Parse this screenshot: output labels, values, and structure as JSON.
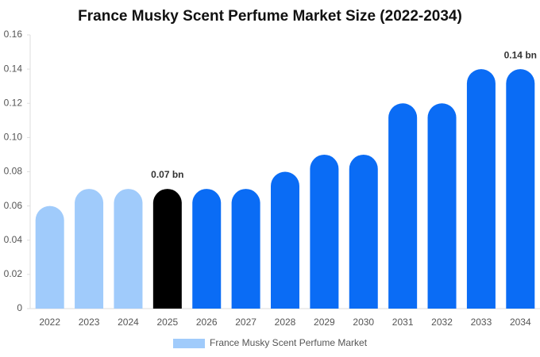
{
  "chart_data": {
    "type": "bar",
    "title": "France Musky Scent Perfume Market Size (2022-2034)",
    "categories": [
      "2022",
      "2023",
      "2024",
      "2025",
      "2026",
      "2027",
      "2028",
      "2029",
      "2030",
      "2031",
      "2032",
      "2033",
      "2034"
    ],
    "series": [
      {
        "name": "France Musky Scent Perfume Market",
        "color": "#a0cbfb",
        "colors": [
          "#a0cbfb",
          "#a0cbfb",
          "#a0cbfb",
          "#000000",
          "#0a6cf5",
          "#0a6cf5",
          "#0a6cf5",
          "#0a6cf5",
          "#0a6cf5",
          "#0a6cf5",
          "#0a6cf5",
          "#0a6cf5",
          "#0a6cf5"
        ],
        "values": [
          0.06,
          0.07,
          0.07,
          0.07,
          0.07,
          0.07,
          0.08,
          0.09,
          0.09,
          0.12,
          0.12,
          0.14,
          0.14
        ],
        "value_labels": [
          null,
          null,
          null,
          "0.07 bn",
          null,
          null,
          null,
          null,
          null,
          null,
          null,
          null,
          "0.14 bn"
        ]
      }
    ],
    "ylim": [
      0,
      0.16
    ],
    "yticks": [
      0,
      0.02,
      0.04,
      0.06,
      0.08,
      {
        "value": 0.1,
        "label": "0.10"
      },
      0.12,
      0.14,
      0.16
    ],
    "grid": false
  }
}
